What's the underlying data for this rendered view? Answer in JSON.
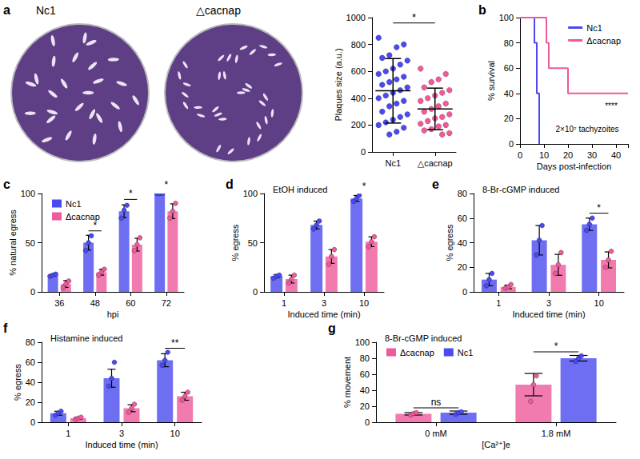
{
  "images": {
    "panel": "a",
    "labels": [
      "Nc1",
      "△cacnap"
    ]
  },
  "chart_data": [
    {
      "type": "scatter",
      "categories": [
        "Nc1",
        "△cacnap"
      ],
      "y_label": "Plaques size (a.u.)",
      "ylim": [
        0,
        1000
      ],
      "yticks": [
        0,
        200,
        400,
        600,
        800,
        1000
      ],
      "grid": false,
      "colors": [
        "#4a4af0",
        "#ee5a9a"
      ],
      "values": [
        [
          850,
          800,
          780,
          720,
          700,
          680,
          650,
          620,
          600,
          580,
          560,
          540,
          520,
          500,
          480,
          460,
          440,
          420,
          400,
          380,
          360,
          340,
          300,
          280,
          260,
          240,
          220,
          200,
          180,
          150,
          130
        ],
        [
          620,
          580,
          540,
          520,
          480,
          460,
          440,
          420,
          400,
          380,
          360,
          340,
          320,
          300,
          280,
          260,
          250,
          230,
          210,
          200,
          190,
          170,
          160,
          140,
          130
        ]
      ],
      "means": [
        455,
        320
      ],
      "sds": [
        240,
        155
      ],
      "annotations": [
        {
          "text": "*",
          "from": "Nc1",
          "to": "△cacnap",
          "y": 960
        }
      ]
    },
    {
      "type": "line",
      "panel": "b",
      "line_style": "step",
      "x_label": "Days post-infection",
      "y_label": "% survival",
      "xlim": [
        0,
        45
      ],
      "xticks": [
        0,
        10,
        20,
        30,
        40
      ],
      "ylim": [
        0,
        100
      ],
      "yticks": [
        0,
        20,
        40,
        60,
        80,
        100
      ],
      "grid": false,
      "legend": "top-right",
      "series": [
        {
          "name": "Nc1",
          "color": "#4a4af0",
          "x": [
            0,
            6,
            7,
            8
          ],
          "values": [
            100,
            80,
            40,
            0
          ]
        },
        {
          "name": "Δcacnap",
          "color": "#ee5a9a",
          "x": [
            0,
            11,
            12,
            20,
            45
          ],
          "values": [
            100,
            80,
            60,
            40,
            40
          ]
        }
      ],
      "annotations": [
        {
          "text": "****",
          "x": 38,
          "y": 30
        },
        {
          "text": "2×10⁷ tachyzoites",
          "x": 28,
          "y": 12
        }
      ]
    },
    {
      "type": "bar",
      "panel": "c",
      "categories": [
        "36",
        "48",
        "60",
        "72"
      ],
      "x_label": "hpi",
      "y_label": "% natural egress",
      "ylim": [
        0,
        100
      ],
      "yticks": [
        0,
        50,
        100
      ],
      "grid": false,
      "legend": "top-left",
      "series": [
        {
          "name": "Nc1",
          "color": "#4a4af0",
          "values": [
            17,
            50,
            82,
            100
          ],
          "errors": [
            1,
            7.5,
            6.5,
            0
          ],
          "points": [
            [
              16,
              17,
              18
            ],
            [
              42,
              50,
              57
            ],
            [
              75,
              83,
              88
            ],
            [
              100,
              100,
              100
            ]
          ]
        },
        {
          "name": "Δcacnap",
          "color": "#ee5a9a",
          "values": [
            8,
            20,
            48,
            82
          ],
          "errors": [
            3.5,
            3,
            6.5,
            7.5
          ],
          "points": [
            [
              4,
              8,
              11
            ],
            [
              17,
              20,
              23
            ],
            [
              42,
              48,
              55
            ],
            [
              75,
              82,
              90
            ]
          ]
        }
      ],
      "annotations": [
        {
          "category": "48",
          "text": "*",
          "y": 62
        },
        {
          "category": "60",
          "text": "*",
          "y": 94
        },
        {
          "category": "72",
          "text": "*",
          "y": 103
        }
      ]
    },
    {
      "type": "bar",
      "panel": "d",
      "subtitle": "EtOH induced",
      "categories": [
        "1",
        "3",
        "10"
      ],
      "x_label": "Induced time (min)",
      "y_label": "% egress",
      "ylim": [
        0,
        100
      ],
      "yticks": [
        0,
        50,
        100
      ],
      "grid": false,
      "series": [
        {
          "name": "Nc1",
          "color": "#4a4af0",
          "values": [
            16,
            68,
            95
          ],
          "errors": [
            1.5,
            4,
            3
          ],
          "points": [
            [
              14,
              16,
              17
            ],
            [
              64,
              68,
              72
            ],
            [
              92,
              95,
              98
            ]
          ]
        },
        {
          "name": "Δcacnap",
          "color": "#ee5a9a",
          "values": [
            13,
            36,
            51
          ],
          "errors": [
            4,
            7,
            5
          ],
          "points": [
            [
              9,
              13,
              17
            ],
            [
              28,
              36,
              43
            ],
            [
              46,
              51,
              56
            ]
          ]
        }
      ],
      "annotations": [
        {
          "category": "10",
          "text": "*",
          "y": 102
        }
      ]
    },
    {
      "type": "bar",
      "panel": "e",
      "subtitle": "8-Br-cGMP induced",
      "categories": [
        "1",
        "3",
        "10"
      ],
      "x_label": "Induced time (min)",
      "y_label": "% egress",
      "ylim": [
        0,
        80
      ],
      "yticks": [
        0,
        20,
        40,
        60,
        80
      ],
      "grid": false,
      "series": [
        {
          "name": "Nc1",
          "color": "#4a4af0",
          "values": [
            10,
            42,
            55
          ],
          "errors": [
            5,
            12,
            5
          ],
          "points": [
            [
              5,
              10,
              15
            ],
            [
              30,
              42,
              54
            ],
            [
              50,
              55,
              60
            ]
          ]
        },
        {
          "name": "Δcacnap",
          "color": "#ee5a9a",
          "values": [
            4,
            22,
            26
          ],
          "errors": [
            1.5,
            8.5,
            6.5
          ],
          "points": [
            [
              3,
              4,
              6
            ],
            [
              15,
              22,
              32
            ],
            [
              20,
              26,
              33
            ]
          ]
        }
      ],
      "annotations": [
        {
          "category": "10",
          "text": "*",
          "y": 64
        }
      ]
    },
    {
      "type": "bar",
      "panel": "f",
      "subtitle": "Histamine induced",
      "categories": [
        "1",
        "3",
        "10"
      ],
      "x_label": "Induced time (min)",
      "y_label": "% egress",
      "ylim": [
        0,
        80
      ],
      "yticks": [
        0,
        20,
        40,
        60,
        80
      ],
      "grid": false,
      "series": [
        {
          "name": "Nc1",
          "color": "#4a4af0",
          "values": [
            9,
            44,
            62
          ],
          "errors": [
            2,
            9,
            6.5
          ],
          "points": [
            [
              7,
              9,
              11
            ],
            [
              36,
              44,
              60
            ],
            [
              57,
              62,
              70
            ]
          ]
        },
        {
          "name": "Δcacnap",
          "color": "#ee5a9a",
          "values": [
            4,
            14,
            26
          ],
          "errors": [
            1,
            3.5,
            4
          ],
          "points": [
            [
              3,
              4,
              5
            ],
            [
              10,
              14,
              18
            ],
            [
              22,
              26,
              30
            ]
          ]
        }
      ],
      "annotations": [
        {
          "category": "10",
          "text": "**",
          "y": 74
        }
      ]
    },
    {
      "type": "bar",
      "panel": "g",
      "subtitle": "8-Br-cGMP induced",
      "categories": [
        "0 mM",
        "1.8 mM"
      ],
      "x_label": "[Ca²⁺]e",
      "y_label": "% movement",
      "ylim": [
        0,
        100
      ],
      "yticks": [
        0,
        20,
        40,
        60,
        80,
        100
      ],
      "grid": false,
      "legend": "top-left",
      "series": [
        {
          "name": "Δcacnap",
          "color": "#ee5a9a",
          "values": [
            10.5,
            47
          ],
          "errors": [
            1.5,
            14
          ],
          "points": [
            [
              9,
              11,
              12
            ],
            [
              26,
              47,
              58
            ]
          ]
        },
        {
          "name": "Nc1",
          "color": "#4a4af0",
          "values": [
            12,
            80
          ],
          "errors": [
            2,
            3.5
          ],
          "points": [
            [
              10,
              12,
              13
            ],
            [
              76,
              80,
              83
            ]
          ]
        }
      ],
      "annotations": [
        {
          "category": "0 mM",
          "text": "ns",
          "y": 18
        },
        {
          "category": "1.8 mM",
          "text": "*",
          "y": 88
        }
      ]
    }
  ]
}
